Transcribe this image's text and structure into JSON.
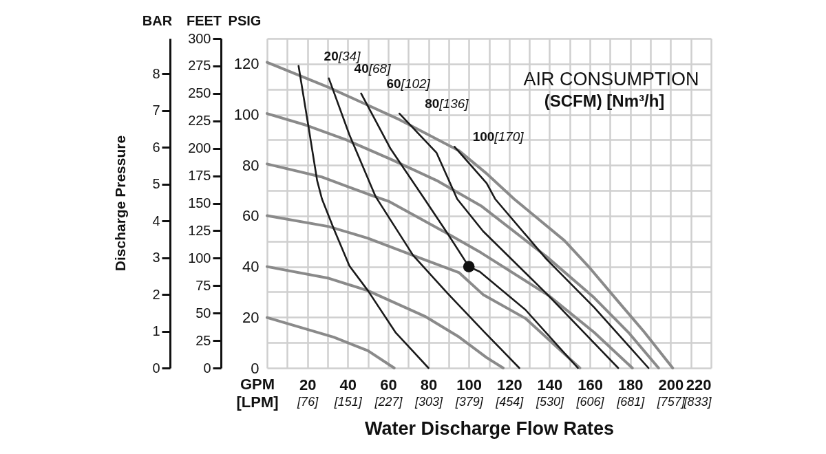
{
  "chart_data": {
    "type": "line",
    "xlabel": "Water Discharge Flow Rates",
    "ylabel": "PSIG",
    "y2label": "FEET",
    "y3label": "BAR",
    "xlim": [
      0,
      220
    ],
    "xticks": [
      {
        "value": 0,
        "label": null
      },
      {
        "value": 10,
        "label": null
      },
      20,
      {
        "value": 30,
        "label": null
      },
      40,
      {
        "value": 50,
        "label": null
      },
      60,
      {
        "value": 70,
        "label": null
      },
      80,
      {
        "value": 90,
        "label": null
      },
      100,
      {
        "value": 110,
        "label": null
      },
      120,
      {
        "value": 130,
        "label": null
      },
      140,
      {
        "value": 150,
        "label": null
      },
      160,
      {
        "value": 170,
        "label": null
      },
      180,
      {
        "value": 190,
        "label": null
      },
      200,
      {
        "value": 210,
        "label": null
      },
      220
    ],
    "x2lim": [
      0,
      832.79
    ],
    "x2ticks": [
      {
        "value": 75.71,
        "label": "[76]"
      },
      {
        "value": 151.42,
        "label": "[151]"
      },
      {
        "value": 227.12,
        "label": "[227]"
      },
      {
        "value": 302.83,
        "label": "[303]"
      },
      {
        "value": 378.54,
        "label": "[379]"
      },
      {
        "value": 454.25,
        "label": "[454]"
      },
      {
        "value": 529.96,
        "label": "[530]"
      },
      {
        "value": 605.67,
        "label": "[606]"
      },
      {
        "value": 681.37,
        "label": "[681]"
      },
      {
        "value": 757.08,
        "label": "[757]"
      },
      {
        "value": 832.79,
        "label": "[833]"
      }
    ],
    "ylim": [
      0,
      130
    ],
    "yticks": [
      0,
      {
        "value": 10,
        "label": null
      },
      20,
      {
        "value": 30,
        "label": null
      },
      40,
      {
        "value": 50,
        "label": null
      },
      60,
      {
        "value": 70,
        "label": null
      },
      80,
      {
        "value": 90,
        "label": null
      },
      100,
      {
        "value": 110,
        "label": null
      },
      120,
      {
        "value": 130,
        "label": null
      }
    ],
    "y2lim": [
      0,
      300
    ],
    "y2ticks": [
      0,
      25,
      50,
      75,
      100,
      125,
      150,
      175,
      200,
      225,
      250,
      275,
      300
    ],
    "y3lim": [
      0,
      8.96
    ],
    "y3ticks": [
      0,
      1,
      2,
      3,
      4,
      5,
      6,
      7,
      8
    ],
    "grid": true,
    "series": [
      {
        "color": "#8a8a8a",
        "x": [
          0,
          30.6,
          65.6,
          95.2,
          108.8,
          122.4,
          147.3,
          159.9,
          173.5,
          187,
          201
        ],
        "values": [
          120.6,
          110.7,
          98,
          85.7,
          76.7,
          66.7,
          50.3,
          39.5,
          26.7,
          14.1,
          0
        ]
      },
      {
        "color": "#8a8a8a",
        "x": [
          0,
          19.4,
          38.4,
          61.2,
          84,
          106,
          138.4,
          162,
          179,
          194
        ],
        "values": [
          100.4,
          95.8,
          90.3,
          82.4,
          74,
          64,
          44,
          27.8,
          14.1,
          0
        ]
      },
      {
        "color": "#8a8a8a",
        "x": [
          0,
          27,
          50,
          60.2,
          89.5,
          106,
          139.5,
          162,
          181
        ],
        "values": [
          80.5,
          75.4,
          68.6,
          65.8,
          53,
          45.5,
          28.6,
          14.1,
          0
        ]
      },
      {
        "color": "#8a8a8a",
        "x": [
          0,
          30.6,
          50,
          72.4,
          95.2,
          107,
          128,
          155
        ],
        "values": [
          60.1,
          55.8,
          51.2,
          44.4,
          37.6,
          29,
          19.6,
          0
        ]
      },
      {
        "color": "#8a8a8a",
        "x": [
          0,
          30.6,
          50,
          78.2,
          95.2,
          108.8,
          117
        ],
        "values": [
          40,
          35.4,
          30.5,
          20.4,
          12.2,
          4.1,
          0
        ]
      },
      {
        "color": "#8a8a8a",
        "x": [
          0,
          33,
          50,
          63
        ],
        "values": [
          19.9,
          12.2,
          6.8,
          0
        ]
      },
      {
        "color": "#1a1a1a",
        "x": [
          15.6,
          20.4,
          24.8,
          27.2,
          33,
          40.8,
          50,
          63.6,
          80
        ],
        "values": [
          119.2,
          95.8,
          74,
          66.7,
          55,
          40.3,
          30.5,
          14.1,
          0
        ]
      },
      {
        "color": "#1a1a1a",
        "x": [
          30.6,
          40.8,
          53.8,
          72.4,
          89.5,
          107.8,
          125
        ],
        "values": [
          114.3,
          92,
          67.6,
          44.4,
          29.4,
          14.1,
          0
        ]
      },
      {
        "color": "#1a1a1a",
        "x": [
          46.6,
          61.2,
          78,
          89.5,
          100,
          105.4,
          128,
          154
        ],
        "values": [
          108.3,
          86.5,
          66.7,
          53,
          40,
          38,
          23,
          0
        ]
      },
      {
        "color": "#1a1a1a",
        "x": [
          65.6,
          84,
          94.2,
          107,
          138.4,
          174
        ],
        "values": [
          100.4,
          84.9,
          66.7,
          54,
          29.4,
          0
        ]
      },
      {
        "color": "#1a1a1a",
        "x": [
          92.9,
          108.8,
          113,
          138.4,
          162,
          189
        ],
        "values": [
          87.3,
          72.9,
          66.7,
          43,
          24,
          0
        ]
      },
      {
        "type": "scatter",
        "marker": "circle",
        "color": "#111111",
        "x": [
          100
        ],
        "values": [
          40
        ]
      }
    ],
    "annotations": [
      {
        "text": "20[34]",
        "x": 15.6,
        "y": 119.2
      },
      {
        "text": "40[68]",
        "x": 30.6,
        "y": 114.3
      },
      {
        "text": "60[102]",
        "x": 46.6,
        "y": 108.3
      },
      {
        "text": "80[136]",
        "x": 65.6,
        "y": 100.4
      },
      {
        "text": "100[170]",
        "x": 92.9,
        "y": 87.3
      },
      "AIR CONSUMPTION",
      "(SCFM) [Nm³/h]",
      "GPM [LPM]",
      "Discharge Pressure"
    ]
  }
}
